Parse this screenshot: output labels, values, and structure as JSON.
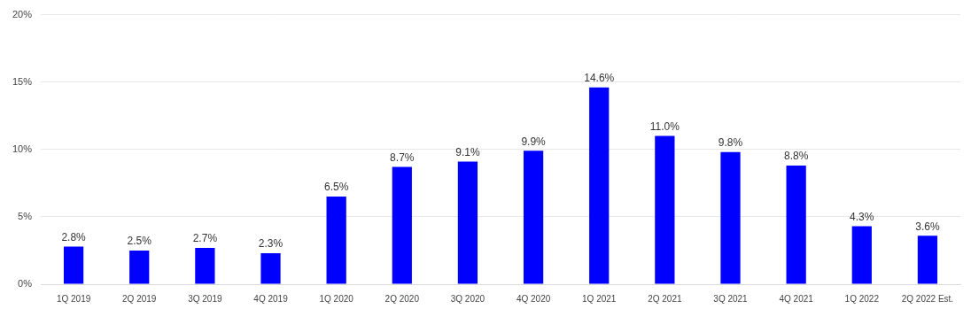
{
  "chart_data": {
    "type": "bar",
    "categories": [
      "1Q 2019",
      "2Q 2019",
      "3Q 2019",
      "4Q 2019",
      "1Q 2020",
      "2Q 2020",
      "3Q 2020",
      "4Q 2020",
      "1Q 2021",
      "2Q 2021",
      "3Q 2021",
      "4Q 2021",
      "1Q 2022",
      "2Q 2022 Est."
    ],
    "values": [
      2.8,
      2.5,
      2.7,
      2.3,
      6.5,
      8.7,
      9.1,
      9.9,
      14.6,
      11.0,
      9.8,
      8.8,
      4.3,
      3.6
    ],
    "value_labels": [
      "2.8%",
      "2.5%",
      "2.7%",
      "2.3%",
      "6.5%",
      "8.7%",
      "9.1%",
      "9.9%",
      "14.6%",
      "11.0%",
      "9.8%",
      "8.8%",
      "4.3%",
      "3.6%"
    ],
    "color": "#0000ff",
    "ylim": [
      0,
      20
    ],
    "yticks": [
      {
        "value": 0,
        "label": "0%"
      },
      {
        "value": 5,
        "label": "5%"
      },
      {
        "value": 10,
        "label": "10%"
      },
      {
        "value": 15,
        "label": "15%"
      },
      {
        "value": 20,
        "label": "20%"
      }
    ],
    "grid": true,
    "data_labels": true
  }
}
